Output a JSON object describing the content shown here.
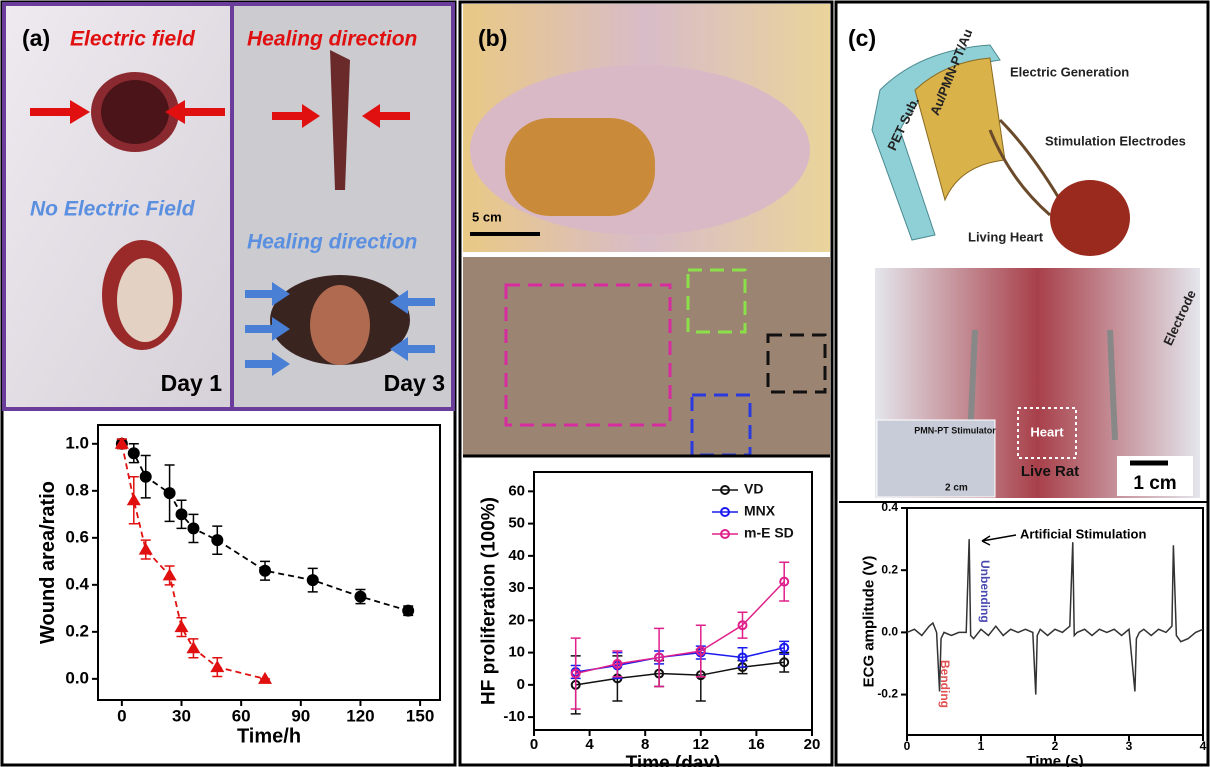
{
  "panels": {
    "a": {
      "label": "(a)",
      "electric_field": "Electric field",
      "no_electric_field": "No Electric Field",
      "day1": "Day 1",
      "healing_red": "Healing direction",
      "healing_blue": "Healing direction",
      "day3": "Day 3"
    },
    "b": {
      "label": "(b)",
      "scale": "5 cm"
    },
    "c": {
      "label": "(c)",
      "layers": "Au/PMN-PT/Au",
      "substrate": "PET Sub.",
      "generation": "Electric Generation",
      "electrodes": "Stimulation Electrodes",
      "heart_label": "Living Heart",
      "heart": "Heart",
      "electrode": "Electrode",
      "stimulator": "PMN-PT Stimulator",
      "inset_scale": "2 cm",
      "rat": "Live Rat",
      "scale": "1 cm"
    }
  },
  "chart_data": [
    {
      "type": "line",
      "xlabel": "Time/h",
      "ylabel": "Wound area/ratio",
      "xlim": [
        -12,
        160
      ],
      "ylim": [
        -0.09,
        1.08
      ],
      "xticks": [
        0,
        30,
        60,
        90,
        120,
        150
      ],
      "yticks": [
        {
          "value": 0,
          "label": "0.0"
        },
        {
          "value": 0.2,
          "label": "0.2"
        },
        {
          "value": 0.4,
          "label": "0.4"
        },
        {
          "value": 0.6,
          "label": "0.6"
        },
        {
          "value": 0.8,
          "label": "0.8"
        },
        {
          "value": 1,
          "label": "1.0"
        }
      ],
      "series": [
        {
          "color": "#000000",
          "marker": "circle",
          "dashed": true,
          "x": [
            0,
            6,
            12,
            24,
            30,
            36,
            48,
            72,
            96,
            120,
            144
          ],
          "values": [
            1.0,
            0.96,
            0.86,
            0.79,
            0.7,
            0.64,
            0.59,
            0.46,
            0.42,
            0.35,
            0.29
          ],
          "errors": [
            0.02,
            0.04,
            0.09,
            0.12,
            0.06,
            0.06,
            0.06,
            0.04,
            0.05,
            0.03,
            0.02
          ]
        },
        {
          "color": "#e01010",
          "marker": "triangle",
          "dashed": true,
          "x": [
            0,
            6,
            12,
            24,
            30,
            36,
            48,
            72
          ],
          "values": [
            1.0,
            0.76,
            0.55,
            0.44,
            0.22,
            0.13,
            0.05,
            0.0
          ],
          "errors": [
            0.02,
            0.1,
            0.04,
            0.04,
            0.04,
            0.04,
            0.04,
            0
          ]
        }
      ]
    },
    {
      "type": "line",
      "xlabel": "Time (day)",
      "ylabel": "HF proliferation (100%)",
      "xlim": [
        0,
        20
      ],
      "ylim": [
        -14,
        66
      ],
      "xticks": [
        0,
        4,
        8,
        12,
        16,
        20
      ],
      "yticks": [
        -10,
        0,
        10,
        20,
        30,
        40,
        50,
        60
      ],
      "legend": "upper right",
      "x": [
        3,
        6,
        9,
        12,
        15,
        18
      ],
      "series": [
        {
          "name": "VD",
          "color": "#111111",
          "marker": "circle-open",
          "values": [
            0,
            2,
            3.5,
            3,
            5.5,
            7
          ],
          "errors": [
            9,
            7,
            4,
            8,
            2,
            3
          ]
        },
        {
          "name": "MNX",
          "color": "#1a1aee",
          "marker": "circle-open",
          "values": [
            4,
            6,
            8.5,
            10,
            8.5,
            11.5
          ],
          "errors": [
            2,
            4,
            2,
            2,
            3,
            2
          ]
        },
        {
          "name": "m-E SD",
          "color": "#e0208a",
          "marker": "circle-open",
          "values": [
            3.5,
            6.5,
            8.5,
            10.5,
            18.5,
            32
          ],
          "errors": [
            11,
            4,
            9,
            8,
            4,
            6
          ]
        }
      ]
    },
    {
      "type": "line",
      "xlabel": "Time (s)",
      "ylabel": "ECG amplitude (V)",
      "xlim": [
        0,
        4
      ],
      "ylim": [
        -0.33,
        0.4
      ],
      "xticks": [
        0,
        1,
        2,
        3,
        4
      ],
      "yticks": [
        {
          "value": -0.2,
          "label": "-0.2"
        },
        {
          "value": 0,
          "label": "0.0"
        },
        {
          "value": 0.2,
          "label": "0.2"
        },
        {
          "value": 0.4,
          "label": "0.4"
        }
      ],
      "annotations": [
        "Artificial Stimulation",
        "Unbending",
        "Bending"
      ],
      "x": [
        0,
        0.1,
        0.2,
        0.3,
        0.35,
        0.4,
        0.44,
        0.46,
        0.5,
        0.6,
        0.7,
        0.8,
        0.84,
        0.86,
        0.9,
        1.0,
        1.1,
        1.2,
        1.3,
        1.4,
        1.5,
        1.6,
        1.7,
        1.74,
        1.76,
        1.8,
        1.9,
        2.0,
        2.1,
        2.2,
        2.24,
        2.26,
        2.3,
        2.4,
        2.5,
        2.6,
        2.7,
        2.8,
        2.9,
        3.0,
        3.08,
        3.1,
        3.14,
        3.2,
        3.3,
        3.4,
        3.5,
        3.58,
        3.6,
        3.64,
        3.7,
        3.8,
        3.9,
        4.0
      ],
      "series": [
        {
          "color": "#333333",
          "marker": "none",
          "dashed": false,
          "values": [
            0,
            0.01,
            -0.01,
            0.02,
            0.03,
            0.0,
            -0.19,
            -0.02,
            0.0,
            -0.01,
            0.0,
            0.0,
            0.3,
            -0.01,
            -0.02,
            0.01,
            -0.01,
            0.02,
            -0.01,
            0.01,
            0,
            0.01,
            0,
            -0.2,
            -0.01,
            0.01,
            -0.01,
            0.01,
            0,
            0.02,
            0.29,
            -0.01,
            0,
            0.01,
            -0.01,
            0.01,
            0,
            0.01,
            -0.01,
            0.01,
            -0.19,
            -0.02,
            0.0,
            0.01,
            -0.01,
            0.01,
            0.0,
            0.02,
            0.28,
            -0.01,
            -0.03,
            -0.02,
            0,
            0.01
          ]
        }
      ]
    }
  ]
}
